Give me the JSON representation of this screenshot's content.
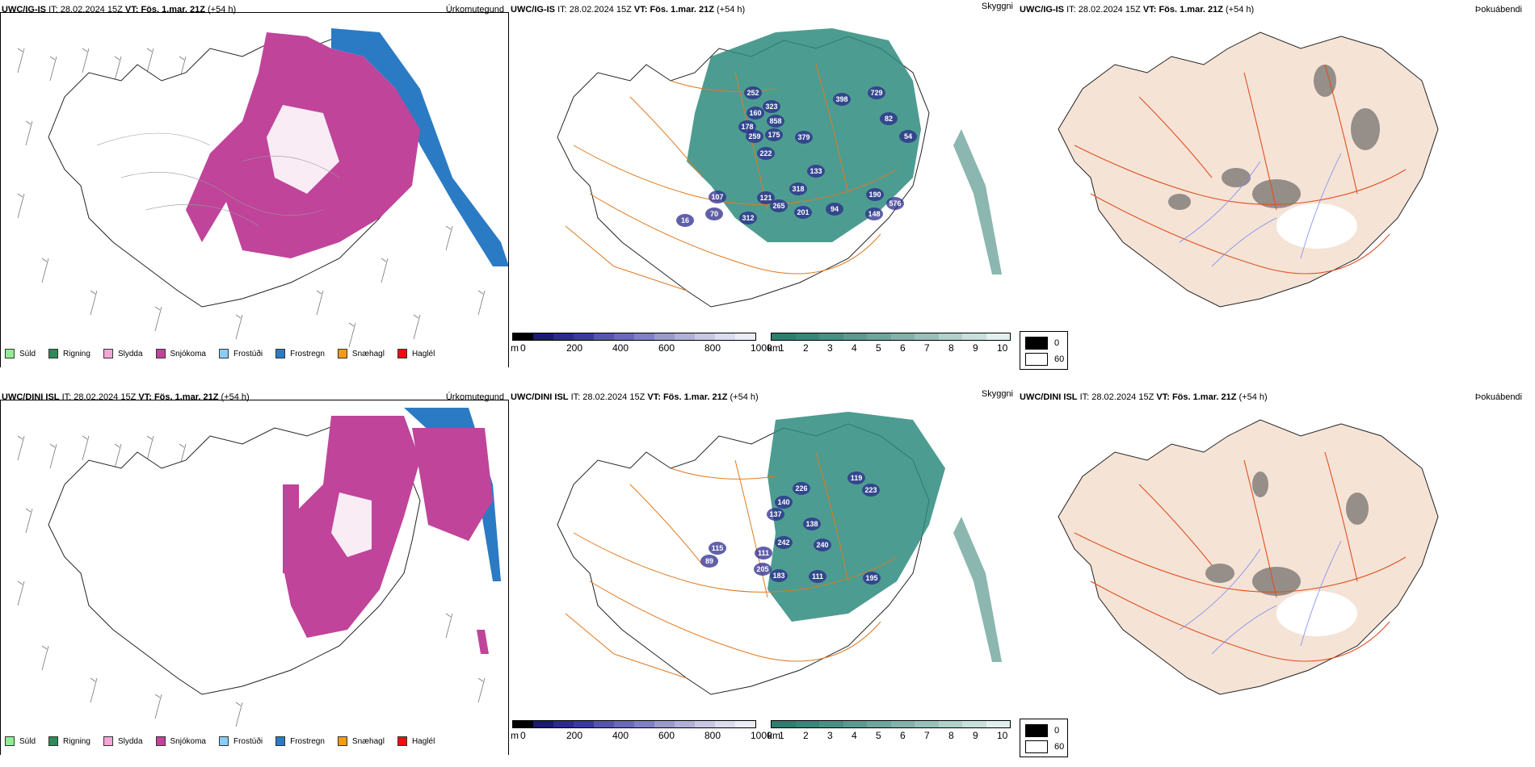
{
  "rows": [
    {
      "model": "UWC/IG-IS",
      "it_label": "IT:",
      "it_value": "28.02.2024 15Z",
      "vt_label": "VT:",
      "vt_value": "Fös. 1.mar. 21Z",
      "lead": "(+54 h)",
      "panels": {
        "precip_type": "Úrkomutegund",
        "clouds": "Skyggni",
        "fog": "Þokuábendi"
      },
      "cloud_labels": [
        "252",
        "323",
        "160",
        "178",
        "858",
        "259",
        "175",
        "222",
        "379",
        "398",
        "729",
        "82",
        "54",
        "133",
        "107",
        "121",
        "70",
        "16",
        "312",
        "318",
        "265",
        "201",
        "94",
        "190",
        "576",
        "148"
      ]
    },
    {
      "model": "UWC/DINI ISL",
      "it_label": "IT:",
      "it_value": "28.02.2024 15Z",
      "vt_label": "VT:",
      "vt_value": "Fös. 1.mar. 21Z",
      "lead": "(+54 h)",
      "panels": {
        "precip_type": "Úrkomutegund",
        "clouds": "Skyggni",
        "fog": "Þokuábendi"
      },
      "cloud_labels": [
        "119",
        "223",
        "226",
        "140",
        "137",
        "138",
        "242",
        "240",
        "115",
        "111",
        "89",
        "205",
        "183",
        "111",
        "195"
      ]
    }
  ],
  "precip_legend": [
    {
      "label": "Súld",
      "color": "#90ee90"
    },
    {
      "label": "Rigning",
      "color": "#2e8b57"
    },
    {
      "label": "Slydda",
      "color": "#f4a6d7"
    },
    {
      "label": "Snjókoma",
      "color": "#c0449a"
    },
    {
      "label": "Frostúði",
      "color": "#87cefa"
    },
    {
      "label": "Frostregn",
      "color": "#2b7bc4"
    },
    {
      "label": "Snæhagl",
      "color": "#f39c12"
    },
    {
      "label": "Haglél",
      "color": "#e81010"
    }
  ],
  "cbar_base": {
    "unit": "m",
    "ticks": [
      "0",
      "200",
      "400",
      "600",
      "800",
      "1000"
    ],
    "colors": [
      "#000000",
      "#1a1a6e",
      "#2b2b8c",
      "#3a3a9e",
      "#5555b0",
      "#6a6ab8",
      "#8080c4",
      "#9a9acc",
      "#b0b0d8",
      "#c8c8e4",
      "#dcdcf0",
      "#ececf8"
    ]
  },
  "cbar_vis": {
    "unit": "km",
    "ticks": [
      "1",
      "2",
      "3",
      "4",
      "5",
      "6",
      "7",
      "8",
      "9",
      "10"
    ],
    "colors": [
      "#2e7d6e",
      "#3a857a",
      "#4a8f84",
      "#5c9a90",
      "#6ea59c",
      "#82b2aa",
      "#98c0b9",
      "#b0d0ca",
      "#c8e0db",
      "#e2f0ed"
    ]
  },
  "cloud_legend": {
    "top_value": "0",
    "bottom_value": "60"
  },
  "colors": {
    "snow": "#c0449a",
    "freezing_rain": "#2b7bc4",
    "visibility": "#2e8b7e",
    "land_fog": "#f5e3d6",
    "roads": "#e07a20",
    "fog_roads": "#e05020",
    "rivers": "#7b8cf0"
  }
}
